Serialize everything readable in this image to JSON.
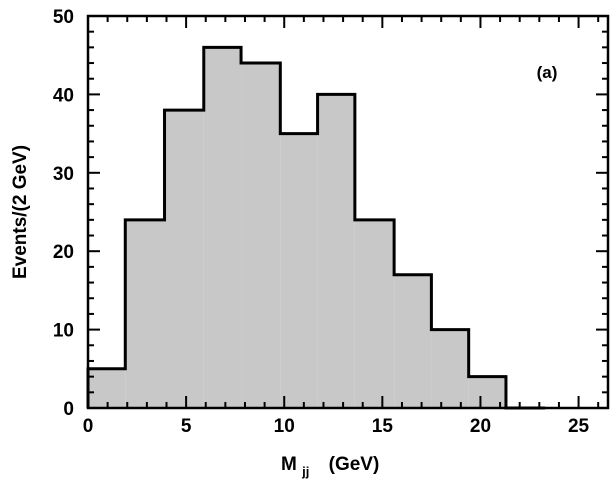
{
  "chart_data": {
    "type": "bar",
    "panel_label": "(a)",
    "xlabel_main": "M",
    "xlabel_sub": "jj",
    "xlabel_unit": "(GeV)",
    "ylabel": "Events/(2 GeV)",
    "xlim": [
      0,
      26.5
    ],
    "ylim": [
      0,
      50
    ],
    "xticks": [
      "0",
      "5",
      "10",
      "15",
      "20",
      "25"
    ],
    "yticks": [
      "0",
      "10",
      "20",
      "30",
      "40",
      "50"
    ],
    "bins": [
      {
        "x0": 0.0,
        "x1": 1.9,
        "value": 5
      },
      {
        "x0": 1.9,
        "x1": 3.9,
        "value": 24
      },
      {
        "x0": 3.9,
        "x1": 5.9,
        "value": 38
      },
      {
        "x0": 5.9,
        "x1": 7.8,
        "value": 46
      },
      {
        "x0": 7.8,
        "x1": 9.8,
        "value": 44
      },
      {
        "x0": 9.8,
        "x1": 11.7,
        "value": 35
      },
      {
        "x0": 11.7,
        "x1": 13.6,
        "value": 40
      },
      {
        "x0": 13.6,
        "x1": 15.6,
        "value": 24
      },
      {
        "x0": 15.6,
        "x1": 17.5,
        "value": 17
      },
      {
        "x0": 17.5,
        "x1": 19.4,
        "value": 10
      },
      {
        "x0": 19.4,
        "x1": 21.3,
        "value": 4
      },
      {
        "x0": 21.3,
        "x1": 23.3,
        "value": 0
      }
    ],
    "fill_color": "#c8c8c8",
    "grid": false
  }
}
